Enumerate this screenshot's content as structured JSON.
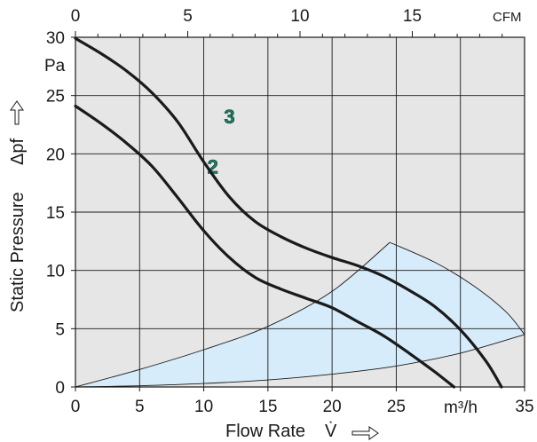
{
  "chart_data": {
    "type": "line",
    "title": "",
    "xlabel": "Flow Rate",
    "x_symbol": "V̇",
    "x_unit": "m³/h",
    "ylabel": "Static Pressure",
    "y_symbol": "Δpf",
    "y_unit": "Pa",
    "top_axis_unit": "CFM",
    "xlim": [
      0,
      35
    ],
    "ylim": [
      0,
      30
    ],
    "top_xlim": [
      0,
      20
    ],
    "x_ticks": [
      0,
      5,
      10,
      15,
      20,
      25,
      35
    ],
    "y_ticks": [
      0,
      5,
      10,
      15,
      20,
      25,
      30
    ],
    "top_ticks": [
      0,
      5,
      10,
      15
    ],
    "grid": true,
    "series": [
      {
        "name": "2",
        "x": [
          0,
          2,
          4,
          6,
          8,
          10,
          12,
          14,
          16,
          18,
          20,
          22,
          24,
          26,
          28,
          29.5
        ],
        "y": [
          24.1,
          22.6,
          20.9,
          18.9,
          16.2,
          13.4,
          11.1,
          9.4,
          8.4,
          7.6,
          6.8,
          5.6,
          4.4,
          2.9,
          1.3,
          0
        ]
      },
      {
        "name": "3",
        "x": [
          0,
          2,
          4,
          6,
          8,
          10,
          12,
          14,
          16,
          18,
          20,
          22,
          24,
          26,
          28,
          30,
          32,
          33.2
        ],
        "y": [
          29.9,
          28.6,
          27.1,
          25.2,
          22.7,
          19.3,
          16.3,
          14.2,
          12.9,
          11.9,
          11.1,
          10.4,
          9.5,
          8.3,
          6.9,
          4.9,
          2.2,
          0
        ]
      }
    ],
    "operating_region": {
      "upper_left_x": [
        0,
        5,
        10,
        15,
        20,
        24.5
      ],
      "upper_left_y": [
        0,
        1.5,
        3.2,
        5.2,
        8.2,
        12.4
      ],
      "upper_right_x": [
        24.5,
        28,
        31,
        33.5,
        35
      ],
      "upper_right_y": [
        12.4,
        10.7,
        8.7,
        6.5,
        4.5
      ],
      "lower_x": [
        35,
        30,
        25,
        20,
        15,
        10,
        5,
        0
      ],
      "lower_y": [
        4.5,
        2.9,
        1.8,
        1.1,
        0.6,
        0.3,
        0.1,
        0
      ]
    },
    "colors": {
      "curve": "#1a1a1a",
      "label": "#1f7a63",
      "region_fill": "#d6ecfa",
      "grid": "#1a1a1a",
      "plot_bg": "#e6e6e6"
    }
  }
}
